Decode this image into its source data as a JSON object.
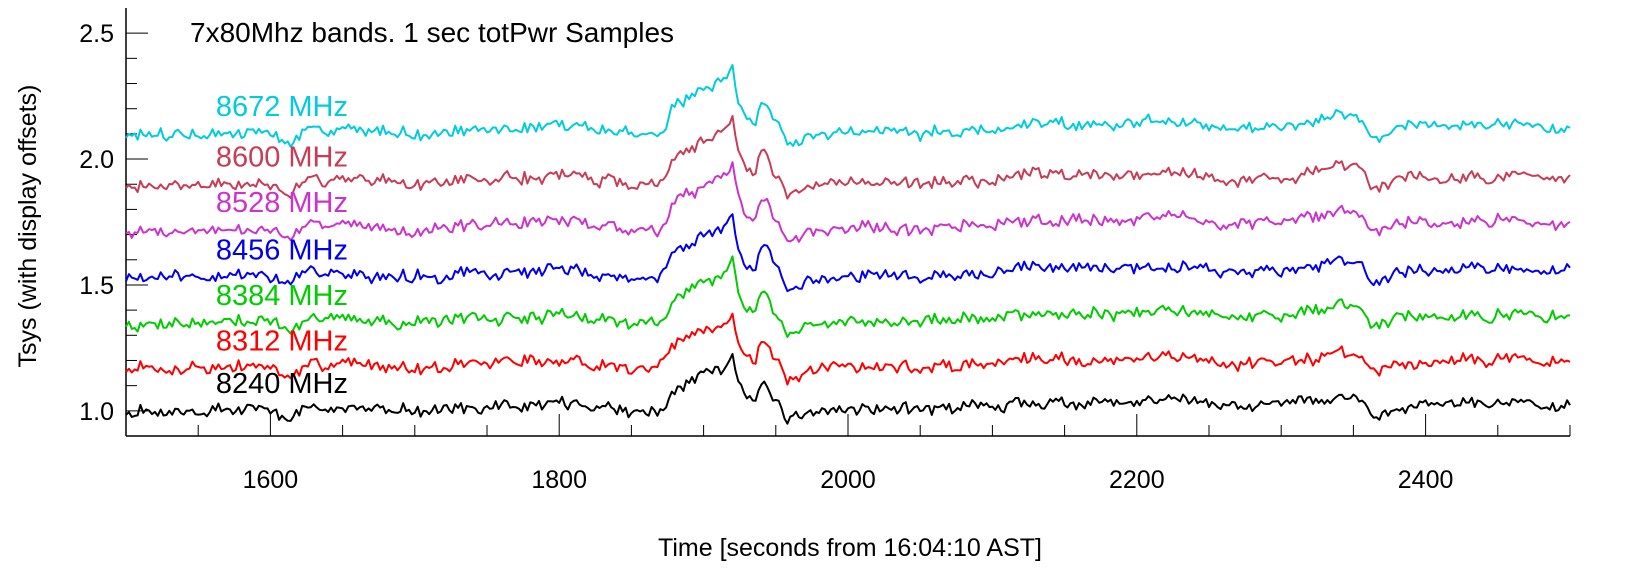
{
  "chart_data": {
    "type": "line",
    "title": "7x80Mhz bands. 1 sec totPwr Samples",
    "xlabel": "Time [seconds from 16:04:10 AST]",
    "ylabel": "Tsys (with display offsets)",
    "xlim": [
      1500,
      2500
    ],
    "ylim": [
      0.9,
      2.6
    ],
    "x_ticks": [
      1600,
      1800,
      2000,
      2200,
      2400
    ],
    "x_tick_labels": [
      "1600",
      "1800",
      "2000",
      "2200",
      "2400"
    ],
    "y_ticks": [
      1.0,
      1.5,
      2.0,
      2.5
    ],
    "y_tick_labels": [
      "1.0",
      "1.5",
      "2.0",
      "2.5"
    ],
    "grid": false,
    "legend": "inline-left",
    "sample_interval_s": 1,
    "profile_points": [
      [
        1500,
        0.0
      ],
      [
        1550,
        0.0
      ],
      [
        1600,
        0.01
      ],
      [
        1610,
        -0.03
      ],
      [
        1630,
        0.02
      ],
      [
        1700,
        0.0
      ],
      [
        1800,
        0.03
      ],
      [
        1850,
        0.0
      ],
      [
        1870,
        0.0
      ],
      [
        1880,
        0.09
      ],
      [
        1890,
        0.12
      ],
      [
        1900,
        0.15
      ],
      [
        1910,
        0.16
      ],
      [
        1920,
        0.22
      ],
      [
        1925,
        0.1
      ],
      [
        1935,
        0.02
      ],
      [
        1940,
        0.12
      ],
      [
        1950,
        0.03
      ],
      [
        1960,
        -0.05
      ],
      [
        1970,
        -0.02
      ],
      [
        1990,
        0.0
      ],
      [
        2000,
        0.01
      ],
      [
        2050,
        0.0
      ],
      [
        2100,
        0.02
      ],
      [
        2150,
        0.04
      ],
      [
        2200,
        0.03
      ],
      [
        2225,
        0.05
      ],
      [
        2250,
        0.02
      ],
      [
        2300,
        0.02
      ],
      [
        2330,
        0.05
      ],
      [
        2350,
        0.07
      ],
      [
        2365,
        -0.02
      ],
      [
        2380,
        0.02
      ],
      [
        2400,
        0.03
      ],
      [
        2450,
        0.03
      ],
      [
        2500,
        0.02
      ]
    ],
    "series": [
      {
        "name": "8240 MHz",
        "color": "#000000",
        "offset": 1.0,
        "seed": 11
      },
      {
        "name": "8312 MHz",
        "color": "#ff0000",
        "offset": 1.17,
        "seed": 23
      },
      {
        "name": "8384 MHz",
        "color": "#00cc00",
        "offset": 1.35,
        "seed": 37
      },
      {
        "name": "8456 MHz",
        "color": "#0000ee",
        "offset": 1.53,
        "seed": 41
      },
      {
        "name": "8528 MHz",
        "color": "#cc33cc",
        "offset": 1.72,
        "seed": 53
      },
      {
        "name": "8600 MHz",
        "color": "#c83c55",
        "offset": 1.9,
        "seed": 67
      },
      {
        "name": "8672 MHz",
        "color": "#00ccdd",
        "offset": 2.1,
        "seed": 79
      }
    ]
  }
}
